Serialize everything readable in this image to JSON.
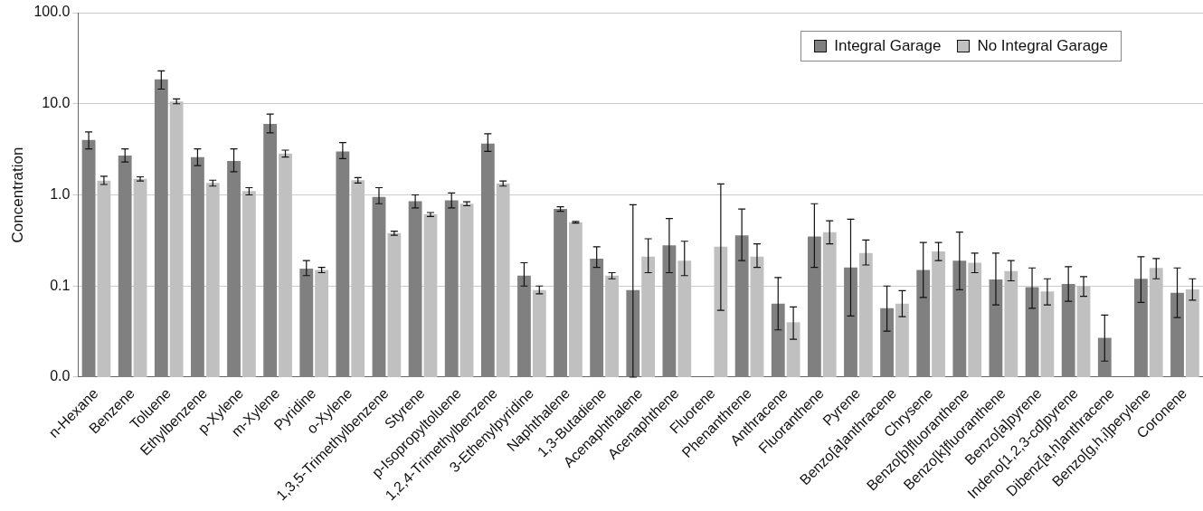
{
  "chart_data": {
    "type": "bar",
    "ylabel": "Concentration",
    "log": "y",
    "grid": "y",
    "legend": "top right",
    "ylim": [
      0.01,
      100
    ],
    "yticks": [
      {
        "value": 0.01,
        "label": "0.0"
      },
      {
        "value": 0.1,
        "label": "0.1"
      },
      {
        "value": 1,
        "label": "1.0"
      },
      {
        "value": 10,
        "label": "10.0"
      },
      {
        "value": 100,
        "label": "100.0"
      }
    ],
    "categories": [
      "n-Hexane",
      "Benzene",
      "Toluene",
      "Ethylbenzene",
      "p-Xylene",
      "m-Xylene",
      "Pyridine",
      "o-Xylene",
      "1,3,5-Trimethylbenzene",
      "Styrene",
      "p-Isopropyltoluene",
      "1,2,4-Trimethylbenzene",
      "3-Ethenylpyridine",
      "Naphthalene",
      "1,3-Butadiene",
      "Acenaphthalene",
      "Acenaphthene",
      "Fluorene",
      "Phenanthrene",
      "Anthracene",
      "Fluoranthene",
      "Pyrene",
      "Benzo[a]anthracene",
      "Chrysene",
      "Benzo[b]fluoranthene",
      "Benzo[k]fluoranthene",
      "Benzo[a]pyrene",
      "Indeno[1,2,3-cd]pyrene",
      "Dibenz[a,h]anthracene",
      "Benzo[g,h,i]perylene",
      "Coronene"
    ],
    "series": [
      {
        "name": "Integral Garage",
        "color": "#808080",
        "values": [
          4.0,
          2.7,
          18.5,
          2.6,
          2.35,
          6.0,
          0.155,
          3.0,
          0.95,
          0.85,
          0.87,
          3.65,
          0.13,
          0.7,
          0.2,
          0.09,
          0.28,
          null,
          0.36,
          0.064,
          0.35,
          0.16,
          0.057,
          0.15,
          0.19,
          0.118,
          0.097,
          0.105,
          0.027,
          0.12,
          0.084
        ],
        "errors": [
          [
            3.2,
            4.9
          ],
          [
            2.3,
            3.2
          ],
          [
            14.5,
            23
          ],
          [
            2.1,
            3.2
          ],
          [
            1.8,
            3.2
          ],
          [
            4.8,
            7.7
          ],
          [
            0.13,
            0.19
          ],
          [
            2.5,
            3.75
          ],
          [
            0.8,
            1.2
          ],
          [
            0.72,
            1.0
          ],
          [
            0.72,
            1.05
          ],
          [
            3.0,
            4.7
          ],
          [
            0.1,
            0.18
          ],
          [
            0.66,
            0.74
          ],
          [
            0.16,
            0.27
          ],
          [
            0.01,
            0.78
          ],
          [
            0.14,
            0.55
          ],
          null,
          [
            0.19,
            0.7
          ],
          [
            0.033,
            0.124
          ],
          [
            0.16,
            0.8
          ],
          [
            0.047,
            0.54
          ],
          [
            0.032,
            0.1
          ],
          [
            0.075,
            0.3
          ],
          [
            0.091,
            0.39
          ],
          [
            0.062,
            0.23
          ],
          [
            0.057,
            0.158
          ],
          [
            0.068,
            0.163
          ],
          [
            0.015,
            0.048
          ],
          [
            0.066,
            0.21
          ],
          [
            0.045,
            0.158
          ]
        ]
      },
      {
        "name": "No Integral Garage",
        "color": "#c0c0c0",
        "values": [
          1.43,
          1.5,
          10.6,
          1.35,
          1.1,
          2.85,
          0.15,
          1.45,
          0.38,
          0.61,
          0.8,
          1.33,
          0.09,
          0.5,
          0.13,
          0.21,
          0.19,
          0.27,
          0.21,
          0.04,
          0.39,
          0.23,
          0.064,
          0.24,
          0.18,
          0.146,
          0.087,
          0.1,
          null,
          0.158,
          0.092
        ],
        "errors": [
          [
            1.3,
            1.6
          ],
          [
            1.42,
            1.58
          ],
          [
            10,
            11.3
          ],
          [
            1.25,
            1.45
          ],
          [
            1.0,
            1.2
          ],
          [
            2.6,
            3.1
          ],
          [
            0.14,
            0.16
          ],
          [
            1.35,
            1.55
          ],
          [
            0.36,
            0.4
          ],
          [
            0.58,
            0.64
          ],
          [
            0.76,
            0.84
          ],
          [
            1.25,
            1.42
          ],
          [
            0.082,
            0.1
          ],
          [
            0.49,
            0.51
          ],
          [
            0.12,
            0.14
          ],
          [
            0.14,
            0.33
          ],
          [
            0.13,
            0.31
          ],
          [
            0.054,
            1.32
          ],
          [
            0.16,
            0.29
          ],
          [
            0.026,
            0.059
          ],
          [
            0.29,
            0.52
          ],
          [
            0.17,
            0.32
          ],
          [
            0.046,
            0.089
          ],
          [
            0.19,
            0.3
          ],
          [
            0.14,
            0.23
          ],
          [
            0.114,
            0.19
          ],
          [
            0.062,
            0.12
          ],
          [
            0.077,
            0.127
          ],
          null,
          [
            0.12,
            0.2
          ],
          [
            0.07,
            0.12
          ]
        ]
      }
    ]
  }
}
